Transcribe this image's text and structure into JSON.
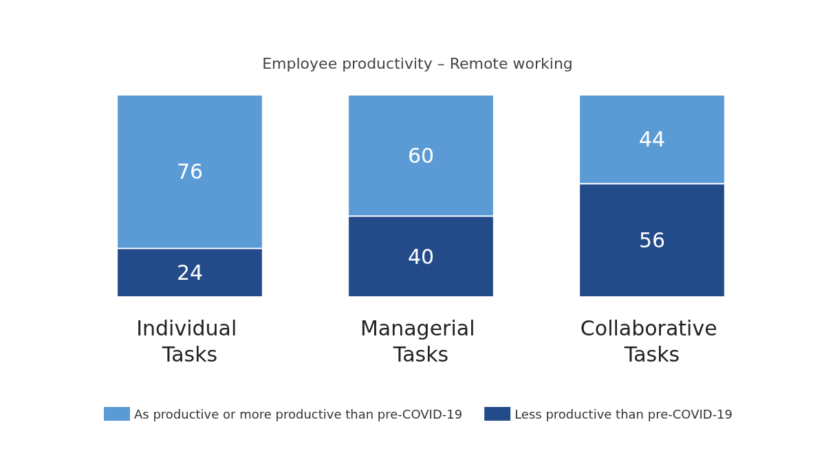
{
  "chart_data": {
    "type": "bar",
    "title": "Employee productivity – Remote working",
    "categories": [
      "Individual Tasks",
      "Managerial Tasks",
      "Collaborative Tasks"
    ],
    "series": [
      {
        "name": "Less productive than pre-COVID-19",
        "color": "#234b8a",
        "values": [
          24,
          40,
          56
        ]
      },
      {
        "name": "As productive or more productive than pre-COVID-19",
        "color": "#5b9bd5",
        "values": [
          76,
          60,
          44
        ]
      }
    ],
    "stacked": true,
    "data_labels": true,
    "legend": "bottom"
  }
}
